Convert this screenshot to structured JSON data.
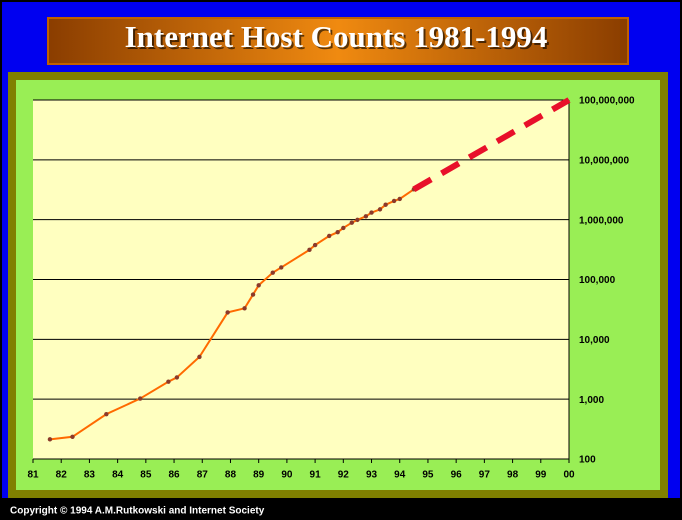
{
  "chart_data": {
    "type": "line",
    "title": "Internet Host Counts 1981-1994",
    "copyright": "Copyright © 1994 A.M.Rutkowski and Internet Society",
    "log_y": true,
    "grid": true,
    "xlim": [
      81,
      100
    ],
    "xticks": [
      81,
      82,
      83,
      84,
      85,
      86,
      87,
      88,
      89,
      90,
      91,
      92,
      93,
      94,
      95,
      96,
      97,
      98,
      99,
      {
        "value": 100,
        "label": "00"
      }
    ],
    "ylim": [
      100,
      100000000
    ],
    "yticks": [
      100,
      {
        "value": 1000,
        "label": "1,000"
      },
      {
        "value": 10000,
        "label": "10,000"
      },
      {
        "value": 100000,
        "label": "100,000"
      },
      {
        "value": 1000000,
        "label": "1,000,000"
      },
      {
        "value": 10000000,
        "label": "10,000,000"
      },
      {
        "value": 100000000,
        "label": "100,000,000"
      }
    ],
    "series": [
      {
        "color": "#ff6a00",
        "marker_color": "#8b3a2a",
        "x": [
          81.6,
          82.4,
          83.6,
          84.8,
          85.8,
          86.1,
          86.9,
          87.9,
          88.5,
          88.8,
          89.0,
          89.5,
          89.8,
          90.8,
          91.0,
          91.5,
          91.8,
          92.0,
          92.3,
          92.5,
          92.8,
          93.0,
          93.3,
          93.5,
          93.8,
          94.0,
          94.5
        ],
        "values": [
          213,
          235,
          562,
          1024,
          1961,
          2308,
          5089,
          28174,
          33000,
          56000,
          80000,
          130000,
          159000,
          313000,
          376000,
          535000,
          617000,
          727000,
          890000,
          992000,
          1136000,
          1313000,
          1486000,
          1776000,
          2056000,
          2217000,
          3212000
        ]
      },
      {
        "color": "#e8102a",
        "dashed": true,
        "x": [
          94.5,
          100
        ],
        "values": [
          3212000,
          100000000
        ]
      }
    ]
  }
}
